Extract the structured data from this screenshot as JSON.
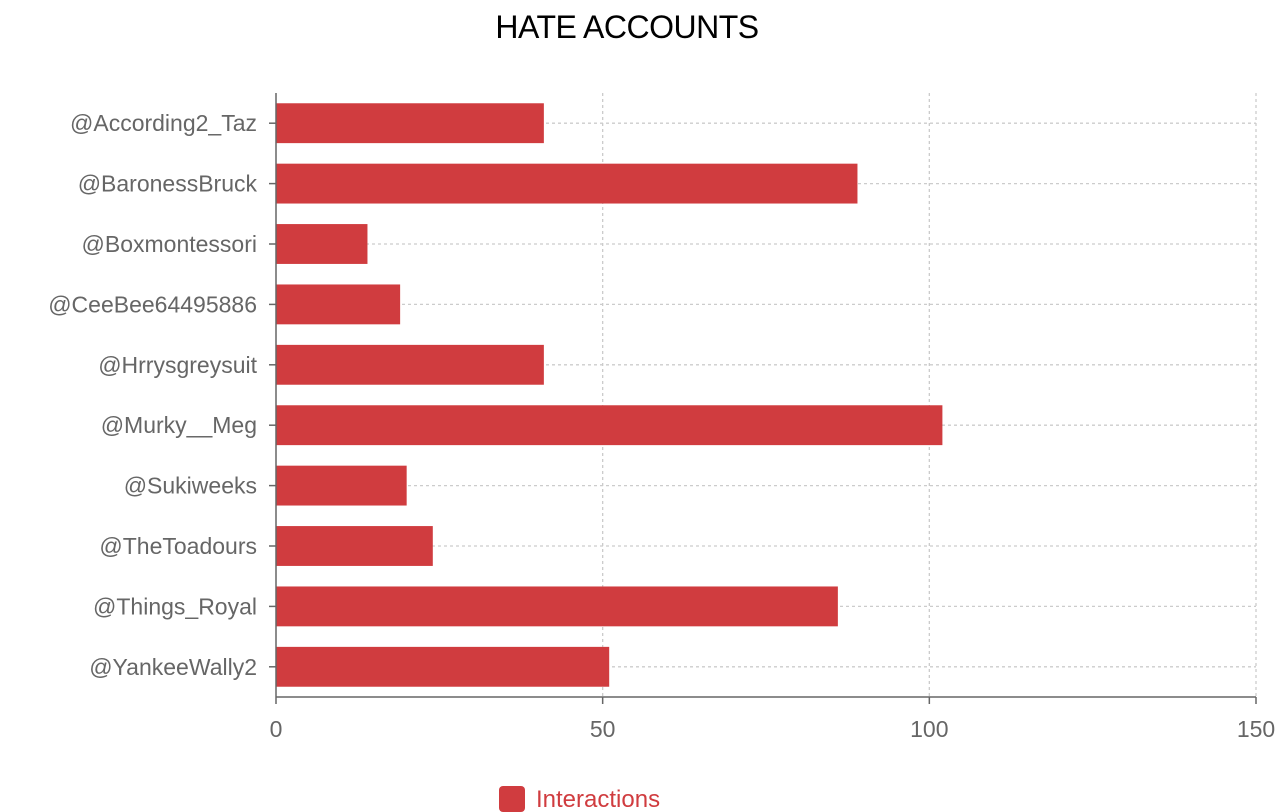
{
  "chart_data": {
    "type": "bar",
    "orientation": "horizontal",
    "title": "HATE ACCOUNTS",
    "categories": [
      "@According2_Taz",
      "@BaronessBruck",
      "@Boxmontessori",
      "@CeeBee64495886",
      "@Hrrysgreysuit",
      "@Murky__Meg",
      "@Sukiweeks",
      "@TheToadours",
      "@Things_Royal",
      "@YankeeWally2"
    ],
    "series": [
      {
        "name": "Interactions",
        "values": [
          41,
          89,
          14,
          19,
          41,
          102,
          20,
          24,
          86,
          51
        ],
        "color": "#d03c3f"
      }
    ],
    "xlim": [
      0,
      150
    ],
    "xticks": [
      0,
      50,
      100,
      150
    ],
    "grid": true,
    "legend_position": "bottom"
  }
}
